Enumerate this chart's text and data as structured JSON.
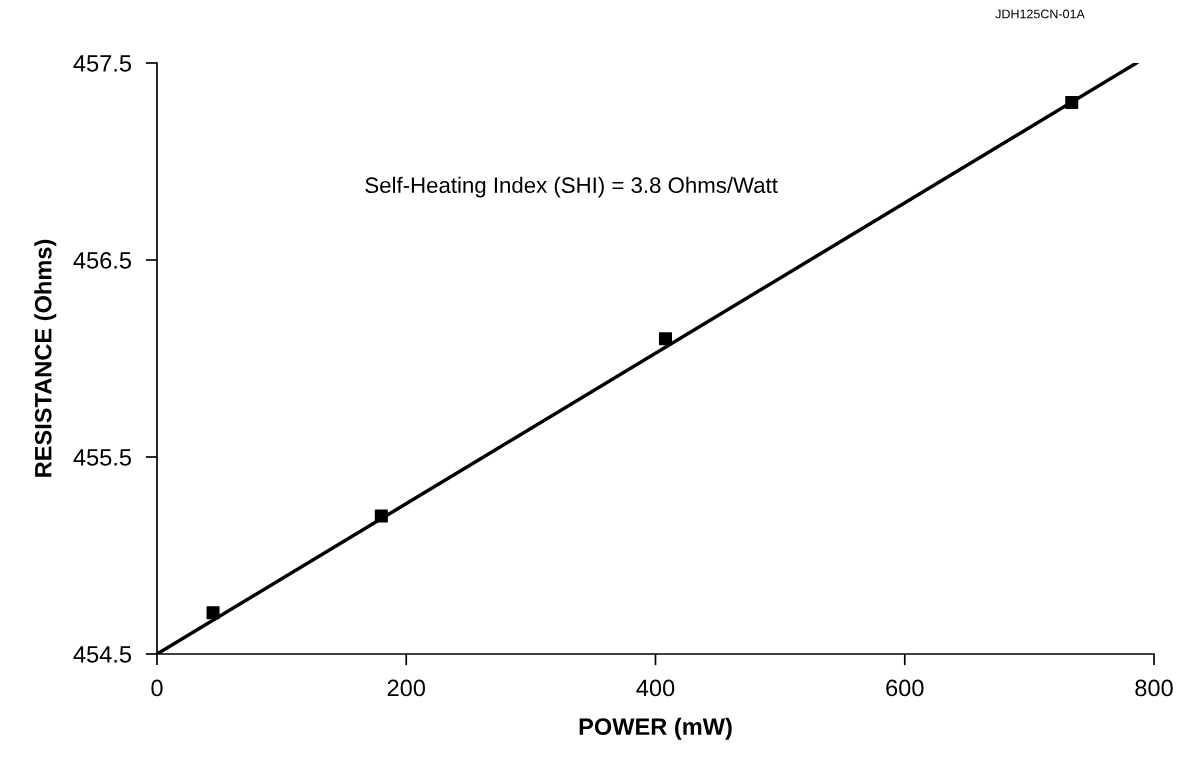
{
  "chart_data": {
    "type": "scatter",
    "xlabel": "POWER (mW)",
    "ylabel": "RESISTANCE (Ohms)",
    "xlim": [
      0,
      800
    ],
    "xticks": [
      0,
      200,
      400,
      600,
      800
    ],
    "ylim": [
      454.5,
      457.5
    ],
    "yticks": [
      454.5,
      455.5,
      456.5,
      457.5
    ],
    "grid": false,
    "legend": false,
    "marker": "square",
    "series": [
      {
        "color": "#000000",
        "x": [
          45,
          180,
          408,
          734
        ],
        "values": [
          454.71,
          455.2,
          456.1,
          457.3
        ]
      },
      {
        "type": "line",
        "color": "#000000",
        "marker": "none",
        "line_style": "solid",
        "x": [
          0,
          786
        ],
        "values": [
          454.5,
          457.5
        ]
      }
    ],
    "annotations": [
      "Self-Heating Index (SHI) = 3.8 Ohms/Watt",
      "JDH125CN-01A"
    ]
  }
}
